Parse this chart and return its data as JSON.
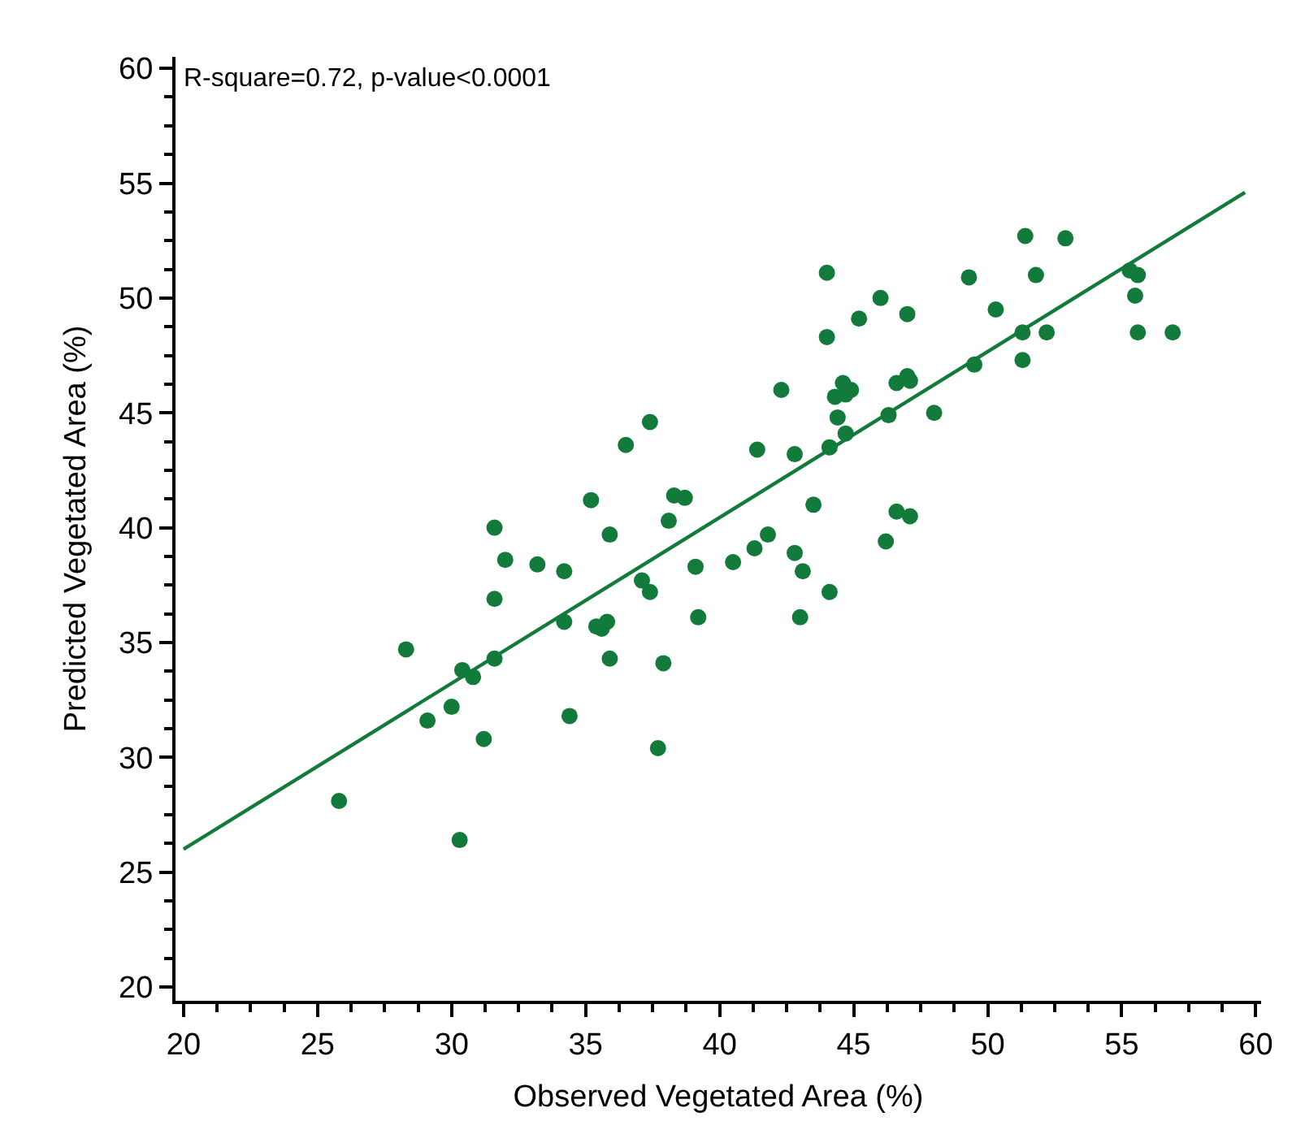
{
  "chart_data": {
    "type": "scatter",
    "xlabel": "Observed Vegetated Area (%)",
    "ylabel": "Predicted Vegetated Area (%)",
    "annotations": [
      "R-square=0.72, p-value<0.0001"
    ],
    "xlim": [
      19.7,
      60.2
    ],
    "xticks": [
      20,
      25,
      30,
      35,
      40,
      45,
      50,
      55,
      60
    ],
    "ylim": [
      19.4,
      60.5
    ],
    "yticks": [
      20,
      25,
      30,
      35,
      40,
      45,
      50,
      55,
      60
    ],
    "marker": "circle",
    "series": [
      {
        "color": "#127a3a",
        "x": [
          25.8,
          28.3,
          29.1,
          30.0,
          30.4,
          30.8,
          30.3,
          31.2,
          31.6,
          31.6,
          31.6,
          32.0,
          33.2,
          34.2,
          34.2,
          34.4,
          35.2,
          35.4,
          35.6,
          35.8,
          35.9,
          35.9,
          36.5,
          37.1,
          37.4,
          37.4,
          37.7,
          37.9,
          38.1,
          38.3,
          38.7,
          39.1,
          39.2,
          40.5,
          41.3,
          41.4,
          41.8,
          42.3,
          42.8,
          42.8,
          43.0,
          43.1,
          43.5,
          44.0,
          44.0,
          44.1,
          44.1,
          44.3,
          44.4,
          44.6,
          44.7,
          44.7,
          44.9,
          45.2,
          46.0,
          46.2,
          46.3,
          46.6,
          46.6,
          47.0,
          47.0,
          47.1,
          47.1,
          48.0,
          49.3,
          49.5,
          50.3,
          51.3,
          51.3,
          51.4,
          51.8,
          52.2,
          52.9,
          55.3,
          55.6,
          55.5,
          55.6,
          56.9
        ],
        "values": [
          28.1,
          34.7,
          31.6,
          32.2,
          33.8,
          33.5,
          26.4,
          30.8,
          34.3,
          36.9,
          40.0,
          38.6,
          38.4,
          38.1,
          35.9,
          31.8,
          41.2,
          35.7,
          35.6,
          35.9,
          39.7,
          34.3,
          43.6,
          37.7,
          37.2,
          44.6,
          30.4,
          34.1,
          40.3,
          41.4,
          41.3,
          38.3,
          36.1,
          38.5,
          39.1,
          43.4,
          39.7,
          46.0,
          43.2,
          38.9,
          36.1,
          38.1,
          41.0,
          51.1,
          48.3,
          43.5,
          37.2,
          45.7,
          44.8,
          46.3,
          44.1,
          45.8,
          46.0,
          49.1,
          50.0,
          39.4,
          44.9,
          46.3,
          40.7,
          49.3,
          46.6,
          46.4,
          40.5,
          45.0,
          50.9,
          47.1,
          49.5,
          48.5,
          47.3,
          52.7,
          51.0,
          48.5,
          52.6,
          51.2,
          51.0,
          50.1,
          48.5,
          48.5
        ]
      },
      {
        "type": "line",
        "color": "#127a3a",
        "marker": "none",
        "line_style": "solid",
        "x": [
          20,
          59.6
        ],
        "values": [
          26.0,
          54.6
        ]
      }
    ]
  }
}
